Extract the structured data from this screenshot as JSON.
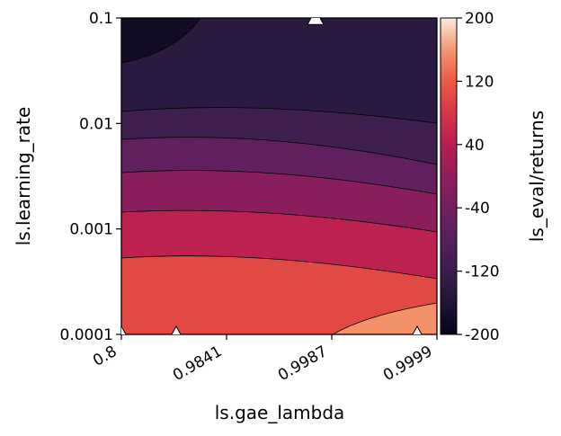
{
  "chart_data": {
    "type": "contour",
    "xlabel": "ls.gae_lambda",
    "ylabel": "ls.learning_rate",
    "colorbar_label": "ls_eval/returns",
    "x_ticks": [
      "0.8",
      "0.9841",
      "0.9987",
      "0.9999"
    ],
    "y_ticks": [
      "0.1",
      "0.01",
      "0.001",
      "0.0001"
    ],
    "y_scale": "log",
    "y_range": [
      0.0001,
      0.1
    ],
    "colorbar_ticks": [
      "200",
      "120",
      "40",
      "-40",
      "-120",
      "-200"
    ],
    "colorbar_range": [
      -200,
      200
    ],
    "levels": [
      -200,
      -160,
      -120,
      -80,
      -40,
      0,
      40,
      80,
      120,
      160,
      200
    ],
    "level_colors": [
      "#0f0a1e",
      "#2a1a3f",
      "#3f1f4e",
      "#55205a",
      "#6f1f5f",
      "#901d5b",
      "#b51f52",
      "#d7344a",
      "#e9513f",
      "#f08a5f",
      "#fad4b4"
    ],
    "sample_points": [
      {
        "x": "0.8",
        "y": 0.0001
      },
      {
        "x": "0.9841",
        "y": 0.0001
      },
      {
        "x": "0.9987",
        "y": 0.1
      },
      {
        "x": "0.9999",
        "y": 0.0001
      }
    ]
  }
}
